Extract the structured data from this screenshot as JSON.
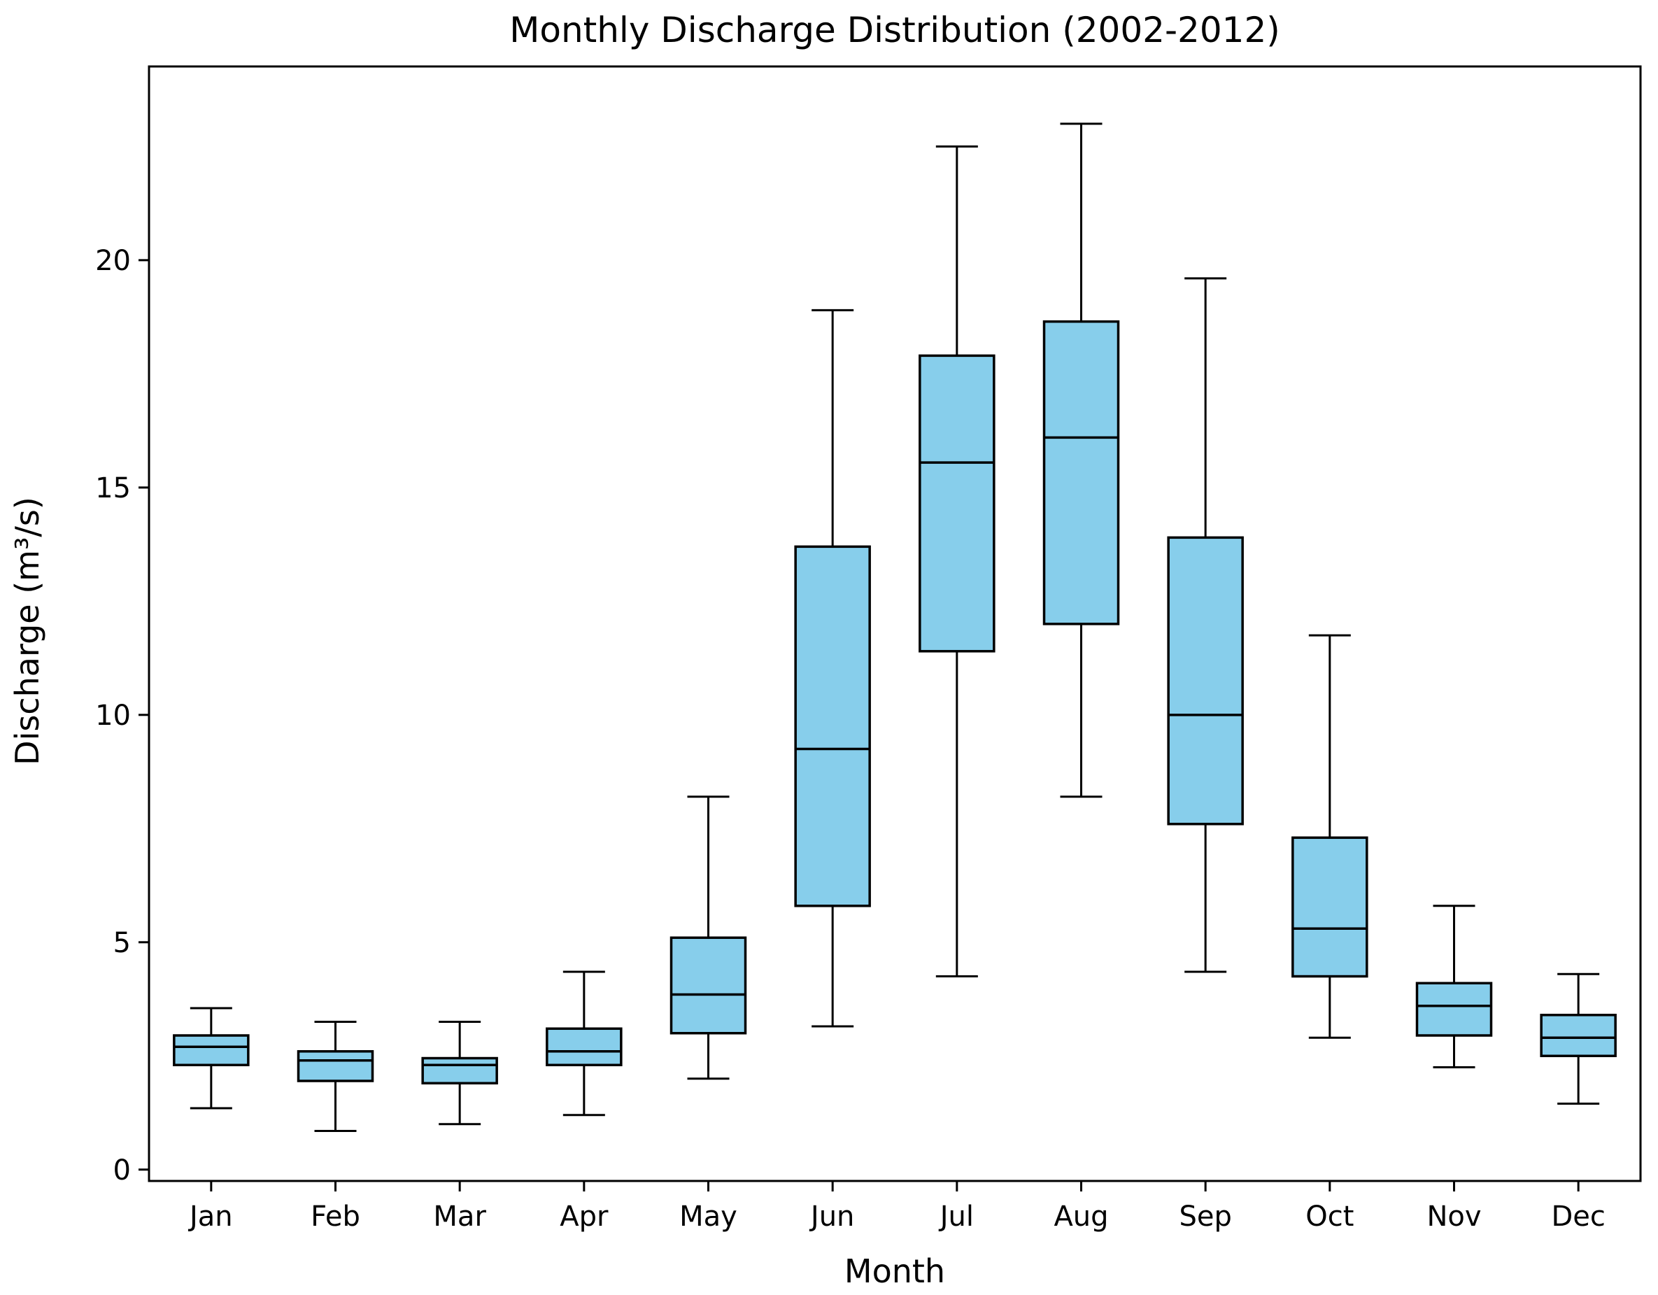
{
  "page": {
    "background": "#ffffff"
  },
  "chart_data": {
    "type": "boxplot",
    "title": "Monthly Discharge Distribution (2002-2012)",
    "xlabel": "Month",
    "ylabel": "Discharge (m³/s)",
    "categories": [
      "Jan",
      "Feb",
      "Mar",
      "Apr",
      "May",
      "Jun",
      "Jul",
      "Aug",
      "Sep",
      "Oct",
      "Nov",
      "Dec"
    ],
    "yticks": [
      0,
      5,
      10,
      15,
      20
    ],
    "ytick_labels": [
      "0",
      "5",
      "10",
      "15",
      "20"
    ],
    "ylim": [
      -0.25,
      24.26
    ],
    "grid": false,
    "legend": "none",
    "box_fill_color": "#87CEEB",
    "box_edge_color": "#000000",
    "median_color": "#000000",
    "whisker_color": "#000000",
    "series": [
      {
        "label": "Jan",
        "whislo": 1.35,
        "q1": 2.3,
        "med": 2.7,
        "q3": 2.95,
        "whishi": 3.55
      },
      {
        "label": "Feb",
        "whislo": 0.85,
        "q1": 1.95,
        "med": 2.4,
        "q3": 2.6,
        "whishi": 3.25
      },
      {
        "label": "Mar",
        "whislo": 1.0,
        "q1": 1.9,
        "med": 2.3,
        "q3": 2.45,
        "whishi": 3.25
      },
      {
        "label": "Apr",
        "whislo": 1.2,
        "q1": 2.3,
        "med": 2.6,
        "q3": 3.1,
        "whishi": 4.35
      },
      {
        "label": "May",
        "whislo": 2.0,
        "q1": 3.0,
        "med": 3.85,
        "q3": 5.1,
        "whishi": 8.2
      },
      {
        "label": "Jun",
        "whislo": 3.15,
        "q1": 5.8,
        "med": 9.25,
        "q3": 13.7,
        "whishi": 18.9
      },
      {
        "label": "Jul",
        "whislo": 4.25,
        "q1": 11.4,
        "med": 15.55,
        "q3": 17.9,
        "whishi": 22.5
      },
      {
        "label": "Aug",
        "whislo": 8.2,
        "q1": 12.0,
        "med": 16.1,
        "q3": 18.65,
        "whishi": 23.0
      },
      {
        "label": "Sep",
        "whislo": 4.35,
        "q1": 7.6,
        "med": 10.0,
        "q3": 13.9,
        "whishi": 19.6
      },
      {
        "label": "Oct",
        "whislo": 2.9,
        "q1": 4.25,
        "med": 5.3,
        "q3": 7.3,
        "whishi": 11.75
      },
      {
        "label": "Nov",
        "whislo": 2.25,
        "q1": 2.95,
        "med": 3.6,
        "q3": 4.1,
        "whishi": 5.8
      },
      {
        "label": "Dec",
        "whislo": 1.45,
        "q1": 2.5,
        "med": 2.9,
        "q3": 3.4,
        "whishi": 4.3
      }
    ]
  }
}
